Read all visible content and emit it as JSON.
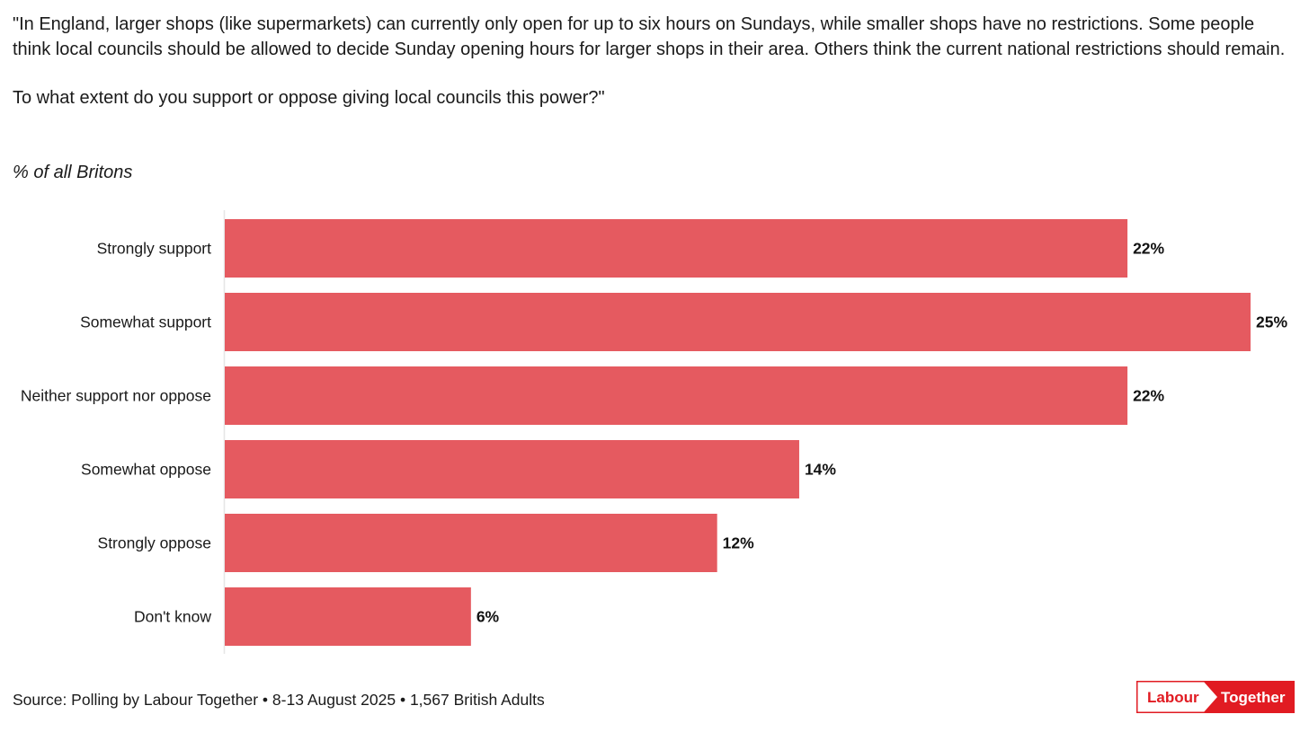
{
  "question": {
    "paragraph_1": "\"In England, larger shops (like supermarkets) can currently only open for up to six hours on Sundays, while smaller shops have no restrictions. Some people think local councils should be allowed to decide Sunday opening hours for larger shops in their area. Others think the current national restrictions should remain.",
    "paragraph_2": "To what extent do you support or oppose giving local councils this power?\""
  },
  "subtitle": "% of all Britons",
  "source": "Source: Polling by Labour Together • 8-13 August 2025 • 1,567 British Adults",
  "logo": {
    "left_text": "Labour",
    "right_text": "Together",
    "brand_color": "#e11b22"
  },
  "chart_data": {
    "type": "bar",
    "orientation": "horizontal",
    "title": "",
    "xlabel": "",
    "ylabel": "",
    "categories": [
      "Strongly support",
      "Somewhat support",
      "Neither support nor oppose",
      "Somewhat oppose",
      "Strongly oppose",
      "Don't know"
    ],
    "values": [
      22,
      25,
      22,
      14,
      12,
      6
    ],
    "value_labels": [
      "22%",
      "25%",
      "22%",
      "14%",
      "12%",
      "6%"
    ],
    "xlim": [
      0,
      25
    ],
    "grid": false,
    "bar_color": "#e55a60"
  }
}
